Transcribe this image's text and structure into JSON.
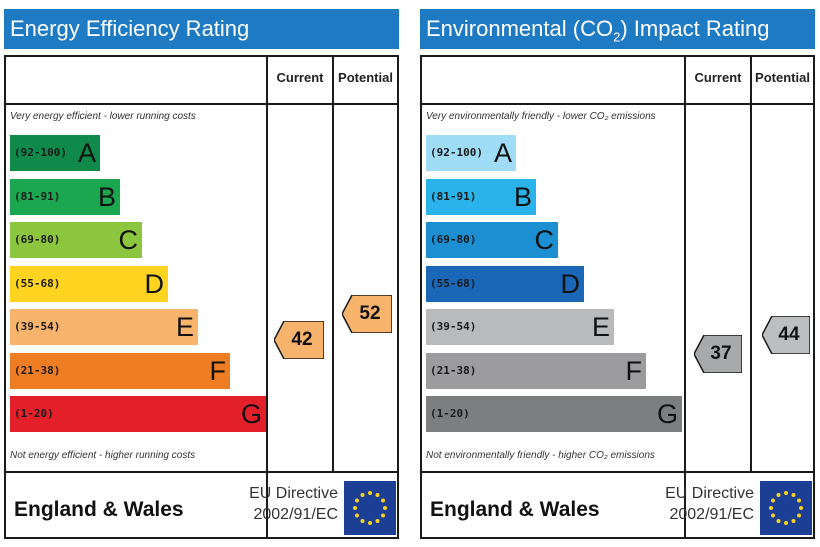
{
  "colors": {
    "title_bar": "#1f7ac4",
    "border": "#1a1a1a",
    "flag": "#1c3f95",
    "star": "#f6d21a"
  },
  "chart_data": [
    {
      "type": "bar",
      "title": "Energy Efficiency Rating",
      "column_headers": [
        "Current",
        "Potential"
      ],
      "top_note": "Very energy efficient - lower running costs",
      "bottom_note": "Not energy efficient - higher running costs",
      "bands": [
        {
          "range": "(92-100)",
          "letter": "A",
          "color": "#0f8a4b"
        },
        {
          "range": "(81-91)",
          "letter": "B",
          "color": "#1aa74f"
        },
        {
          "range": "(69-80)",
          "letter": "C",
          "color": "#8cc63e"
        },
        {
          "range": "(55-68)",
          "letter": "D",
          "color": "#ffd420"
        },
        {
          "range": "(39-54)",
          "letter": "E",
          "color": "#f8b36c"
        },
        {
          "range": "(21-38)",
          "letter": "F",
          "color": "#ef7d24"
        },
        {
          "range": "(1-20)",
          "letter": "G",
          "color": "#e3202a"
        }
      ],
      "current": {
        "value": 42,
        "band": "E",
        "color": "#f8b36c"
      },
      "potential": {
        "value": 52,
        "band": "E",
        "color": "#f8b36c"
      },
      "footer_region": "England & Wales",
      "directive": [
        "EU Directive",
        "2002/91/EC"
      ]
    },
    {
      "type": "bar",
      "title": "Environmental (CO₂) Impact Rating",
      "column_headers": [
        "Current",
        "Potential"
      ],
      "top_note": "Very environmentally friendly - lower CO₂ emissions",
      "bottom_note": "Not environmentally friendly - higher CO₂ emissions",
      "bands": [
        {
          "range": "(92-100)",
          "letter": "A",
          "color": "#9fdcf6"
        },
        {
          "range": "(81-91)",
          "letter": "B",
          "color": "#29b3ea"
        },
        {
          "range": "(69-80)",
          "letter": "C",
          "color": "#1b8fd2"
        },
        {
          "range": "(55-68)",
          "letter": "D",
          "color": "#1967b6"
        },
        {
          "range": "(39-54)",
          "letter": "E",
          "color": "#b9babc"
        },
        {
          "range": "(21-38)",
          "letter": "F",
          "color": "#9c9c9e"
        },
        {
          "range": "(1-20)",
          "letter": "G",
          "color": "#7d7e80"
        }
      ],
      "current": {
        "value": 37,
        "band": "F",
        "color": "#a8a9ab"
      },
      "potential": {
        "value": 44,
        "band": "E",
        "color": "#bdbec0"
      },
      "footer_region": "England & Wales",
      "directive": [
        "EU Directive",
        "2002/91/EC"
      ]
    }
  ]
}
